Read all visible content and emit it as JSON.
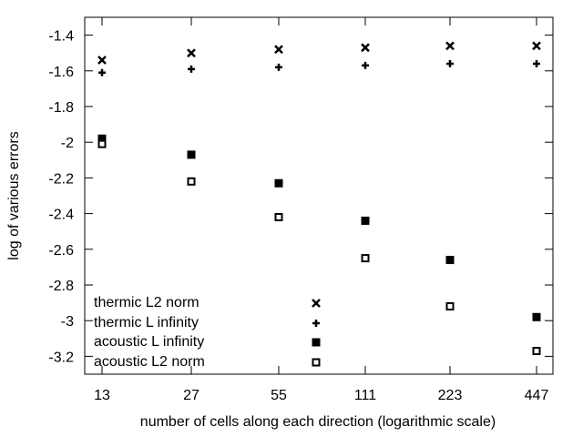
{
  "chart_data": {
    "type": "scatter",
    "title": "",
    "xlabel": "number of cells along each direction (logarithmic scale)",
    "ylabel": "log of various errors",
    "x_scale": "log",
    "x": [
      13,
      27,
      55,
      111,
      223,
      447
    ],
    "x_tick_labels": [
      "13",
      "27",
      "55",
      "111",
      "223",
      "447"
    ],
    "ylim": [
      -3.3,
      -1.3
    ],
    "y_ticks": [
      -1.4,
      -1.6,
      -1.8,
      -2,
      -2.2,
      -2.4,
      -2.6,
      -2.8,
      -3,
      -3.2
    ],
    "y_tick_labels": [
      "-1.4",
      "-1.6",
      "-1.8",
      "-2",
      "-2.2",
      "-2.4",
      "-2.6",
      "-2.8",
      "-3",
      "-3.2"
    ],
    "grid": false,
    "legend_position": "bottom-left",
    "series": [
      {
        "name": "thermic L2 norm",
        "marker": "cross-x",
        "values": [
          -1.54,
          -1.5,
          -1.48,
          -1.47,
          -1.46,
          -1.46
        ]
      },
      {
        "name": "thermic L infinity",
        "marker": "plus",
        "values": [
          -1.61,
          -1.59,
          -1.58,
          -1.57,
          -1.56,
          -1.56
        ]
      },
      {
        "name": "acoustic L infinity",
        "marker": "filled-square",
        "values": [
          -1.98,
          -2.07,
          -2.23,
          -2.44,
          -2.66,
          -2.98
        ]
      },
      {
        "name": "acoustic  L2 norm",
        "marker": "open-square",
        "values": [
          -2.01,
          -2.22,
          -2.42,
          -2.65,
          -2.92,
          -3.17
        ]
      }
    ]
  }
}
